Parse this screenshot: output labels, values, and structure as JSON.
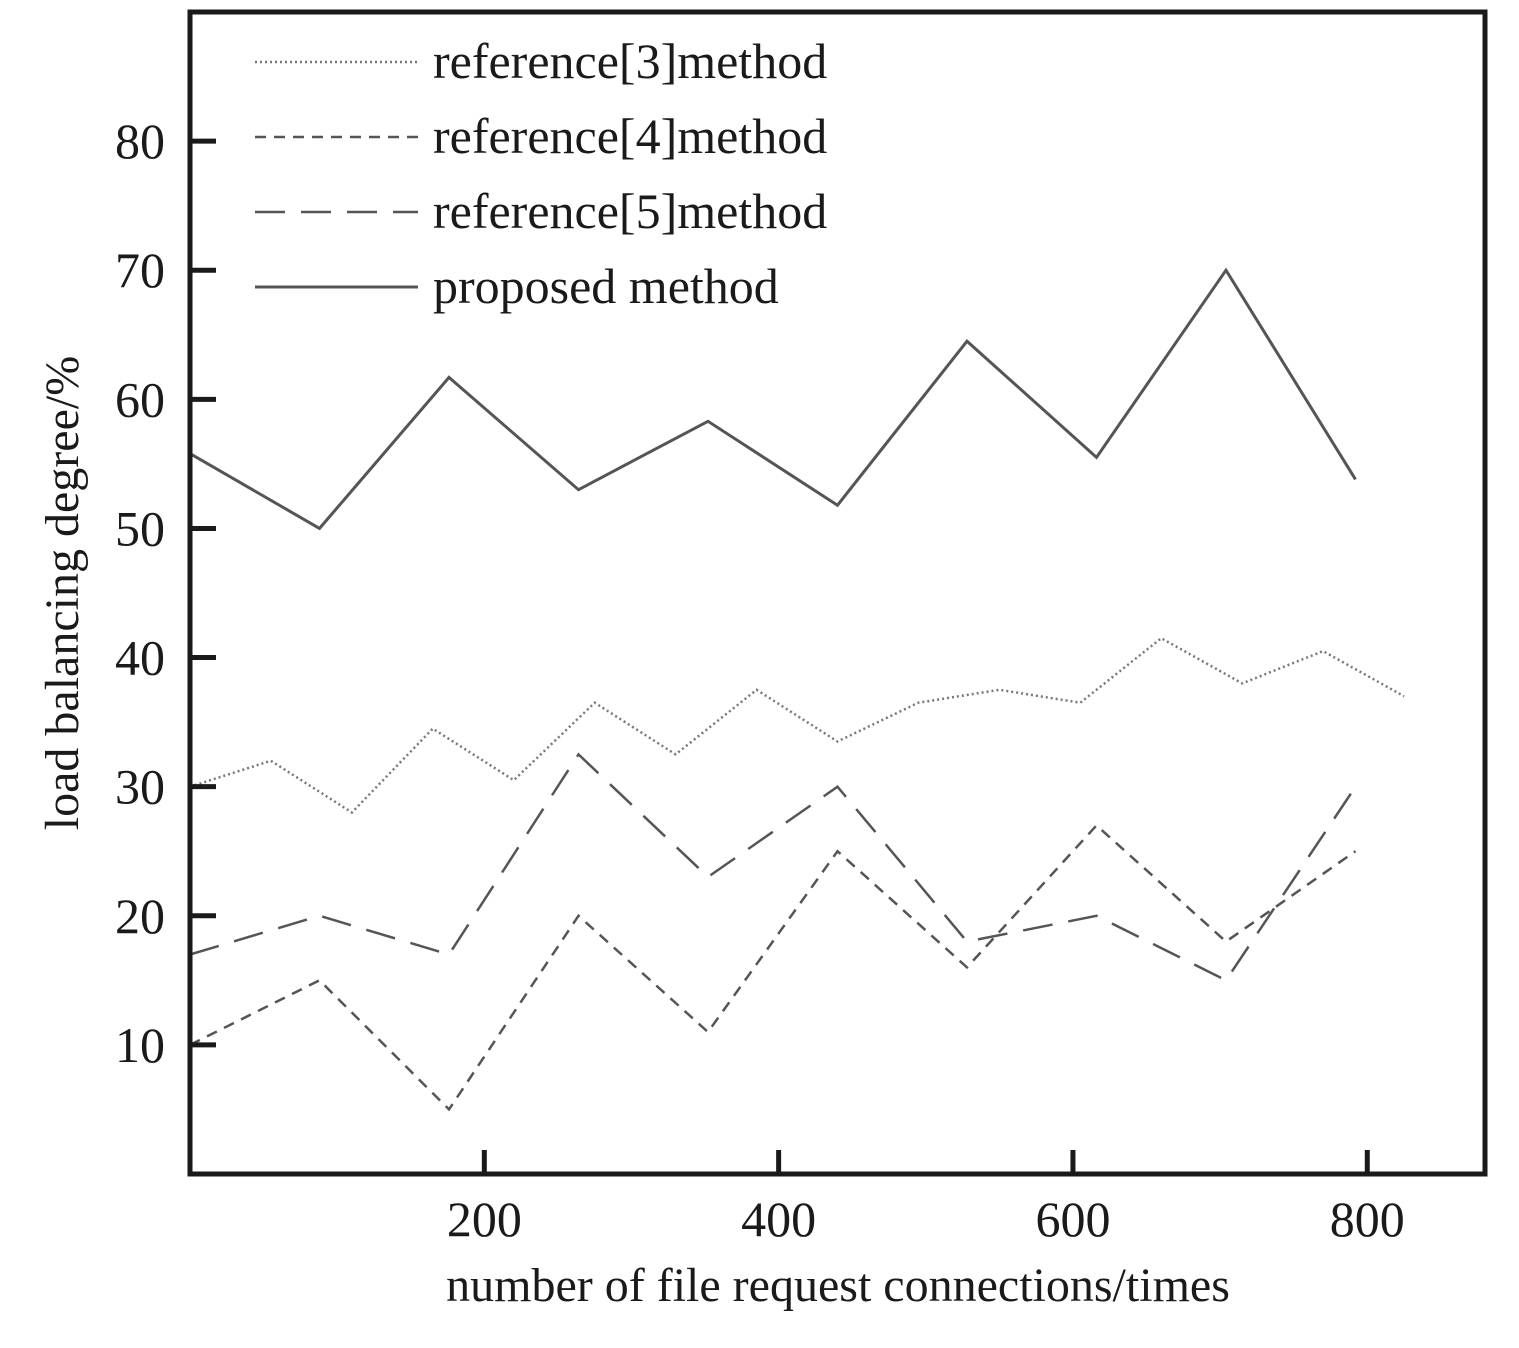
{
  "chart_data": {
    "type": "line",
    "title": "",
    "xlabel": "number of file request connections/times",
    "ylabel": "load balancing degree/%",
    "xlim": [
      0,
      880
    ],
    "ylim": [
      0,
      90
    ],
    "xticks": [
      200,
      400,
      600,
      800
    ],
    "yticks": [
      10,
      20,
      30,
      40,
      50,
      60,
      70,
      80
    ],
    "grid": false,
    "legend_position": "top-left",
    "series": [
      {
        "name": "reference[3]method",
        "style": "dotted",
        "color": "#777777",
        "x": [
          0,
          55,
          110,
          165,
          220,
          275,
          330,
          385,
          440,
          495,
          550,
          605,
          660,
          715,
          770,
          825
        ],
        "y": [
          30,
          32,
          28,
          34.5,
          30.5,
          36.5,
          32.5,
          37.5,
          33.5,
          36.5,
          37.5,
          36.5,
          41.5,
          38,
          40.5,
          37
        ]
      },
      {
        "name": "reference[4]method",
        "style": "short-dash",
        "color": "#555555",
        "x": [
          0,
          88,
          176,
          264,
          352,
          440,
          528,
          616,
          704,
          792
        ],
        "y": [
          10,
          15,
          5,
          20,
          11,
          25,
          16,
          27,
          18,
          25
        ]
      },
      {
        "name": "reference[5]method",
        "style": "long-dash",
        "color": "#555555",
        "x": [
          0,
          88,
          176,
          264,
          352,
          440,
          528,
          616,
          704,
          792
        ],
        "y": [
          17,
          20,
          17,
          32.5,
          23,
          30,
          18,
          20,
          15,
          30
        ]
      },
      {
        "name": "proposed method",
        "style": "solid",
        "color": "#555555",
        "x": [
          0,
          88,
          176,
          264,
          352,
          440,
          528,
          616,
          704,
          792
        ],
        "y": [
          55.8,
          50,
          61.7,
          53,
          58.3,
          51.8,
          64.5,
          55.5,
          70,
          53.8
        ]
      }
    ]
  }
}
